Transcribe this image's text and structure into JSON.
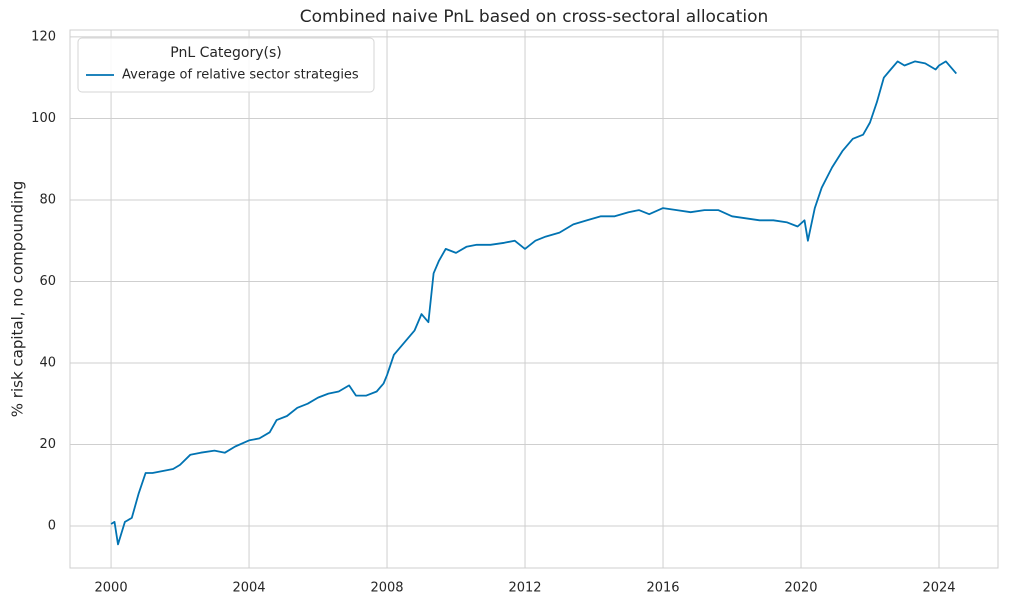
{
  "chart_data": {
    "type": "line",
    "title": "Combined naive PnL based on cross-sectoral allocation",
    "y_label": "% risk capital, no compounding",
    "legend_title": "PnL Category(s)",
    "legend_position": "upper left",
    "grid": true,
    "x": [
      2000.0,
      2000.1,
      2000.2,
      2000.4,
      2000.6,
      2000.8,
      2001.0,
      2001.2,
      2001.5,
      2001.8,
      2002.0,
      2002.3,
      2002.6,
      2003.0,
      2003.3,
      2003.6,
      2004.0,
      2004.3,
      2004.6,
      2004.8,
      2005.1,
      2005.4,
      2005.7,
      2006.0,
      2006.3,
      2006.6,
      2006.9,
      2007.1,
      2007.4,
      2007.7,
      2007.9,
      2008.0,
      2008.2,
      2008.5,
      2008.8,
      2009.0,
      2009.2,
      2009.35,
      2009.5,
      2009.7,
      2010.0,
      2010.3,
      2010.6,
      2011.0,
      2011.4,
      2011.7,
      2012.0,
      2012.3,
      2012.6,
      2013.0,
      2013.4,
      2013.8,
      2014.2,
      2014.6,
      2015.0,
      2015.3,
      2015.6,
      2016.0,
      2016.4,
      2016.8,
      2017.2,
      2017.6,
      2018.0,
      2018.4,
      2018.8,
      2019.2,
      2019.6,
      2019.9,
      2020.1,
      2020.2,
      2020.4,
      2020.6,
      2020.9,
      2021.2,
      2021.5,
      2021.8,
      2022.0,
      2022.2,
      2022.4,
      2022.6,
      2022.8,
      2023.0,
      2023.3,
      2023.6,
      2023.9,
      2024.0,
      2024.2,
      2024.5
    ],
    "series": [
      {
        "name": "Average of relative sector strategies",
        "color": "#0173b2",
        "values": [
          0.5,
          1,
          -4.5,
          1,
          2,
          8,
          13,
          13,
          13.5,
          14,
          15,
          17.5,
          18,
          18.5,
          18,
          19.5,
          21,
          21.5,
          23,
          26,
          27,
          29,
          30,
          31.5,
          32.5,
          33,
          34.5,
          32,
          32,
          33,
          35,
          37,
          42,
          45,
          48,
          52,
          50,
          62,
          65,
          68,
          67,
          68.5,
          69,
          69,
          69.5,
          70,
          68,
          70,
          71,
          72,
          74,
          75,
          76,
          76,
          77,
          77.5,
          76.5,
          78,
          77.5,
          77,
          77.5,
          77.5,
          76,
          75.5,
          75,
          75,
          74.5,
          73.5,
          75,
          70,
          78,
          83,
          88,
          92,
          95,
          96,
          99,
          104,
          110,
          112,
          114,
          113,
          114,
          113.5,
          112,
          113,
          114,
          111
        ]
      }
    ],
    "xlim": [
      1998.81,
      2025.71
    ],
    "xticks": [
      2000,
      2004,
      2008,
      2012,
      2016,
      2020,
      2024
    ],
    "ylim": [
      -10.3,
      121.7
    ],
    "yticks": [
      0,
      20,
      40,
      60,
      80,
      100,
      120
    ]
  }
}
